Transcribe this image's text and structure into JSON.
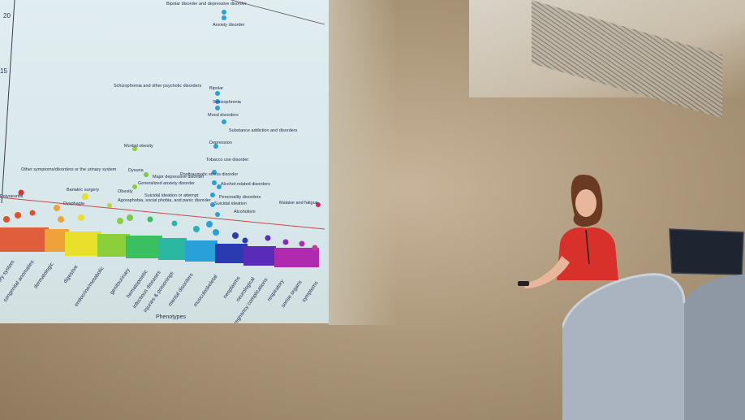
{
  "slide": {
    "y_ticks": [
      "20",
      "15"
    ],
    "x_axis_title": "Phenotypes",
    "categories": [
      "circulatory system",
      "congenital anomalies",
      "dermatologic",
      "digestive",
      "endocrine/metabolic",
      "genitourinary",
      "hematopoietic",
      "infectious diseases",
      "injuries & poisonings",
      "mental disorders",
      "musculoskeletal",
      "neoplasms",
      "neurological",
      "pregnancy complications",
      "respiratory",
      "sense organs",
      "symptoms"
    ],
    "annotations": [
      "Bipolar disorder and depressive disorder",
      "Anxiety disorder",
      "Bipolar",
      "Schizophrenia and other psychotic disorders",
      "Schizophrenia",
      "Mood disorders",
      "Substance addiction and disorders",
      "Depression",
      "Morbid obesity",
      "Tobacco use disorder",
      "Posttraumatic stress disorder",
      "Dysuria",
      "Major depressive disorder",
      "Other symptoms/disorders or the urinary system",
      "Generalized anxiety disorder",
      "Alcohol-related disorders",
      "Bariatric surgery",
      "Obesity",
      "Suicidal ideation or attempt",
      "Personality disorders",
      "Polyneuritis",
      "Dysphagia",
      "Suicidal ideation",
      "Agoraphobia, social phobia, and panic disorder",
      "Alcoholism",
      "Malaise and fatigue"
    ],
    "colors": {
      "threshold_line": "#c8484e",
      "label_text": "#2a2f50"
    }
  }
}
